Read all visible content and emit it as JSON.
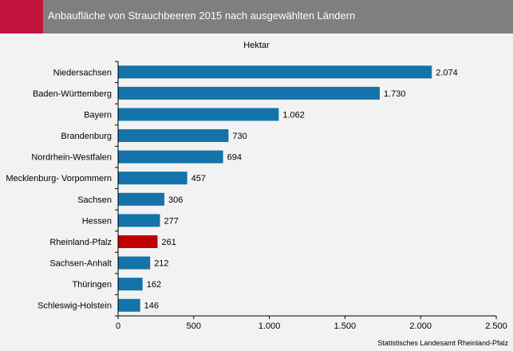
{
  "header": {
    "title": "Anbaufläche von Strauchbeeren 2015 nach ausgewählten Ländern"
  },
  "unit_label": "Hektar",
  "source": "Statistisches Landesamt Rheinland-Pfalz",
  "colors": {
    "bar": "#1473a8",
    "highlight": "#c00000",
    "header": "#7f7f7f",
    "accent": "#c0143c"
  },
  "chart_data": {
    "type": "bar",
    "orientation": "horizontal",
    "categories": [
      "Niedersachsen",
      "Baden-Württemberg",
      "Bayern",
      "Brandenburg",
      "Nordrhein-Westfalen",
      "Mecklenburg- Vorpommern",
      "Sachsen",
      "Hessen",
      "Rheinland-Pfalz",
      "Sachsen-Anhalt",
      "Thüringen",
      "Schleswig-Holstein"
    ],
    "values": [
      2074,
      1730,
      1062,
      730,
      694,
      457,
      306,
      277,
      261,
      212,
      162,
      146
    ],
    "value_labels": [
      "2.074",
      "1.730",
      "1.062",
      "730",
      "694",
      "457",
      "306",
      "277",
      "261",
      "212",
      "162",
      "146"
    ],
    "highlight_category": "Rheinland-Pfalz",
    "xlim": [
      0,
      2500
    ],
    "xticks": [
      0,
      500,
      1000,
      1500,
      2000,
      2500
    ],
    "xtick_labels": [
      "0",
      "500",
      "1.000",
      "1.500",
      "2.000",
      "2.500"
    ],
    "grid": false
  }
}
